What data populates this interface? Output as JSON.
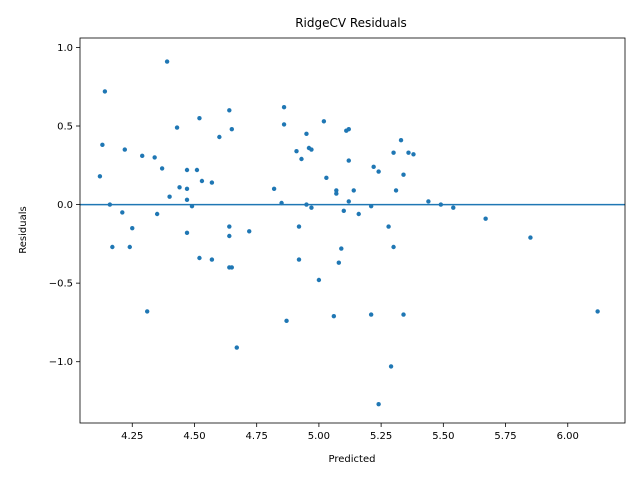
{
  "chart_data": {
    "type": "scatter",
    "title": "RidgeCV Residuals",
    "xlabel": "Predicted",
    "ylabel": "Residuals",
    "xlim": [
      4.04,
      6.23
    ],
    "ylim": [
      -1.39,
      1.06
    ],
    "xticks": [
      4.25,
      4.5,
      4.75,
      5.0,
      5.25,
      5.5,
      5.75,
      6.0
    ],
    "xtick_labels": [
      "4.25",
      "4.50",
      "4.75",
      "5.00",
      "5.25",
      "5.50",
      "5.75",
      "6.00"
    ],
    "yticks": [
      -1.0,
      -0.5,
      0.0,
      0.5,
      1.0
    ],
    "ytick_labels": [
      "−1.0",
      "−0.5",
      "0.0",
      "0.5",
      "1.0"
    ],
    "reference_line_y": 0,
    "color": "#1f77b4",
    "grid": false,
    "points": [
      [
        4.39,
        0.91
      ],
      [
        4.14,
        0.72
      ],
      [
        4.13,
        0.38
      ],
      [
        4.22,
        0.35
      ],
      [
        4.29,
        0.31
      ],
      [
        4.34,
        0.3
      ],
      [
        4.37,
        0.23
      ],
      [
        4.12,
        0.18
      ],
      [
        4.43,
        0.49
      ],
      [
        4.52,
        0.55
      ],
      [
        4.47,
        0.22
      ],
      [
        4.51,
        0.22
      ],
      [
        4.53,
        0.15
      ],
      [
        4.57,
        0.14
      ],
      [
        4.44,
        0.11
      ],
      [
        4.47,
        0.1
      ],
      [
        4.4,
        0.05
      ],
      [
        4.47,
        0.03
      ],
      [
        4.16,
        0.0
      ],
      [
        4.49,
        -0.01
      ],
      [
        4.21,
        -0.05
      ],
      [
        4.35,
        -0.06
      ],
      [
        4.25,
        -0.15
      ],
      [
        4.47,
        -0.18
      ],
      [
        4.17,
        -0.27
      ],
      [
        4.24,
        -0.27
      ],
      [
        4.52,
        -0.34
      ],
      [
        4.57,
        -0.35
      ],
      [
        4.31,
        -0.68
      ],
      [
        4.6,
        0.43
      ],
      [
        4.64,
        0.6
      ],
      [
        4.65,
        0.48
      ],
      [
        4.64,
        -0.14
      ],
      [
        4.64,
        -0.2
      ],
      [
        4.64,
        -0.4
      ],
      [
        4.65,
        -0.4
      ],
      [
        4.72,
        -0.17
      ],
      [
        4.67,
        -0.91
      ],
      [
        4.86,
        0.62
      ],
      [
        4.86,
        0.51
      ],
      [
        4.82,
        0.1
      ],
      [
        4.85,
        0.01
      ],
      [
        4.87,
        -0.74
      ],
      [
        4.91,
        0.34
      ],
      [
        4.93,
        0.29
      ],
      [
        4.95,
        0.45
      ],
      [
        4.96,
        0.36
      ],
      [
        4.97,
        0.35
      ],
      [
        4.92,
        -0.14
      ],
      [
        4.95,
        0.0
      ],
      [
        4.97,
        -0.02
      ],
      [
        4.92,
        -0.35
      ],
      [
        5.0,
        -0.48
      ],
      [
        5.02,
        0.53
      ],
      [
        5.03,
        0.17
      ],
      [
        5.07,
        0.09
      ],
      [
        5.07,
        0.07
      ],
      [
        5.08,
        -0.37
      ],
      [
        5.09,
        -0.28
      ],
      [
        5.1,
        -0.04
      ],
      [
        5.06,
        -0.71
      ],
      [
        5.11,
        0.47
      ],
      [
        5.12,
        0.48
      ],
      [
        5.12,
        0.28
      ],
      [
        5.14,
        0.09
      ],
      [
        5.12,
        0.02
      ],
      [
        5.16,
        -0.06
      ],
      [
        5.21,
        -0.01
      ],
      [
        5.22,
        0.24
      ],
      [
        5.24,
        0.21
      ],
      [
        5.21,
        -0.7
      ],
      [
        5.24,
        -1.27
      ],
      [
        5.3,
        0.33
      ],
      [
        5.33,
        0.41
      ],
      [
        5.36,
        0.33
      ],
      [
        5.38,
        0.32
      ],
      [
        5.34,
        0.19
      ],
      [
        5.31,
        0.09
      ],
      [
        5.28,
        -0.14
      ],
      [
        5.3,
        -0.27
      ],
      [
        5.34,
        -0.7
      ],
      [
        5.29,
        -1.03
      ],
      [
        5.44,
        0.02
      ],
      [
        5.49,
        0.0
      ],
      [
        5.54,
        -0.02
      ],
      [
        5.67,
        -0.09
      ],
      [
        5.85,
        -0.21
      ],
      [
        6.12,
        -0.68
      ]
    ]
  }
}
